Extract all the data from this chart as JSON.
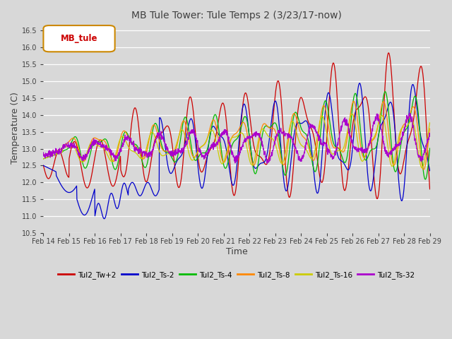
{
  "title": "MB Tule Tower: Tule Temps 2 (3/23/17-now)",
  "xlabel": "Time",
  "ylabel": "Temperature (C)",
  "ylim": [
    10.5,
    16.75
  ],
  "yticks": [
    10.5,
    11.0,
    11.5,
    12.0,
    12.5,
    13.0,
    13.5,
    14.0,
    14.5,
    15.0,
    15.5,
    16.0,
    16.5
  ],
  "x_labels": [
    "Feb 14",
    "Feb 15",
    "Feb 16",
    "Feb 17",
    "Feb 18",
    "Feb 19",
    "Feb 20",
    "Feb 21",
    "Feb 22",
    "Feb 23",
    "Feb 24",
    "Feb 25",
    "Feb 26",
    "Feb 27",
    "Feb 28",
    "Feb 29"
  ],
  "bg_color": "#d8d8d8",
  "plot_bg_color": "#d8d8d8",
  "legend_label": "MB_tule",
  "legend_fg": "#cc0000",
  "series_colors": {
    "Tul2_Tw+2": "#cc0000",
    "Tul2_Ts-2": "#0000cc",
    "Tul2_Ts-4": "#00bb00",
    "Tul2_Ts-8": "#ff8800",
    "Tul2_Ts-16": "#cccc00",
    "Tul2_Ts-32": "#aa00cc"
  }
}
